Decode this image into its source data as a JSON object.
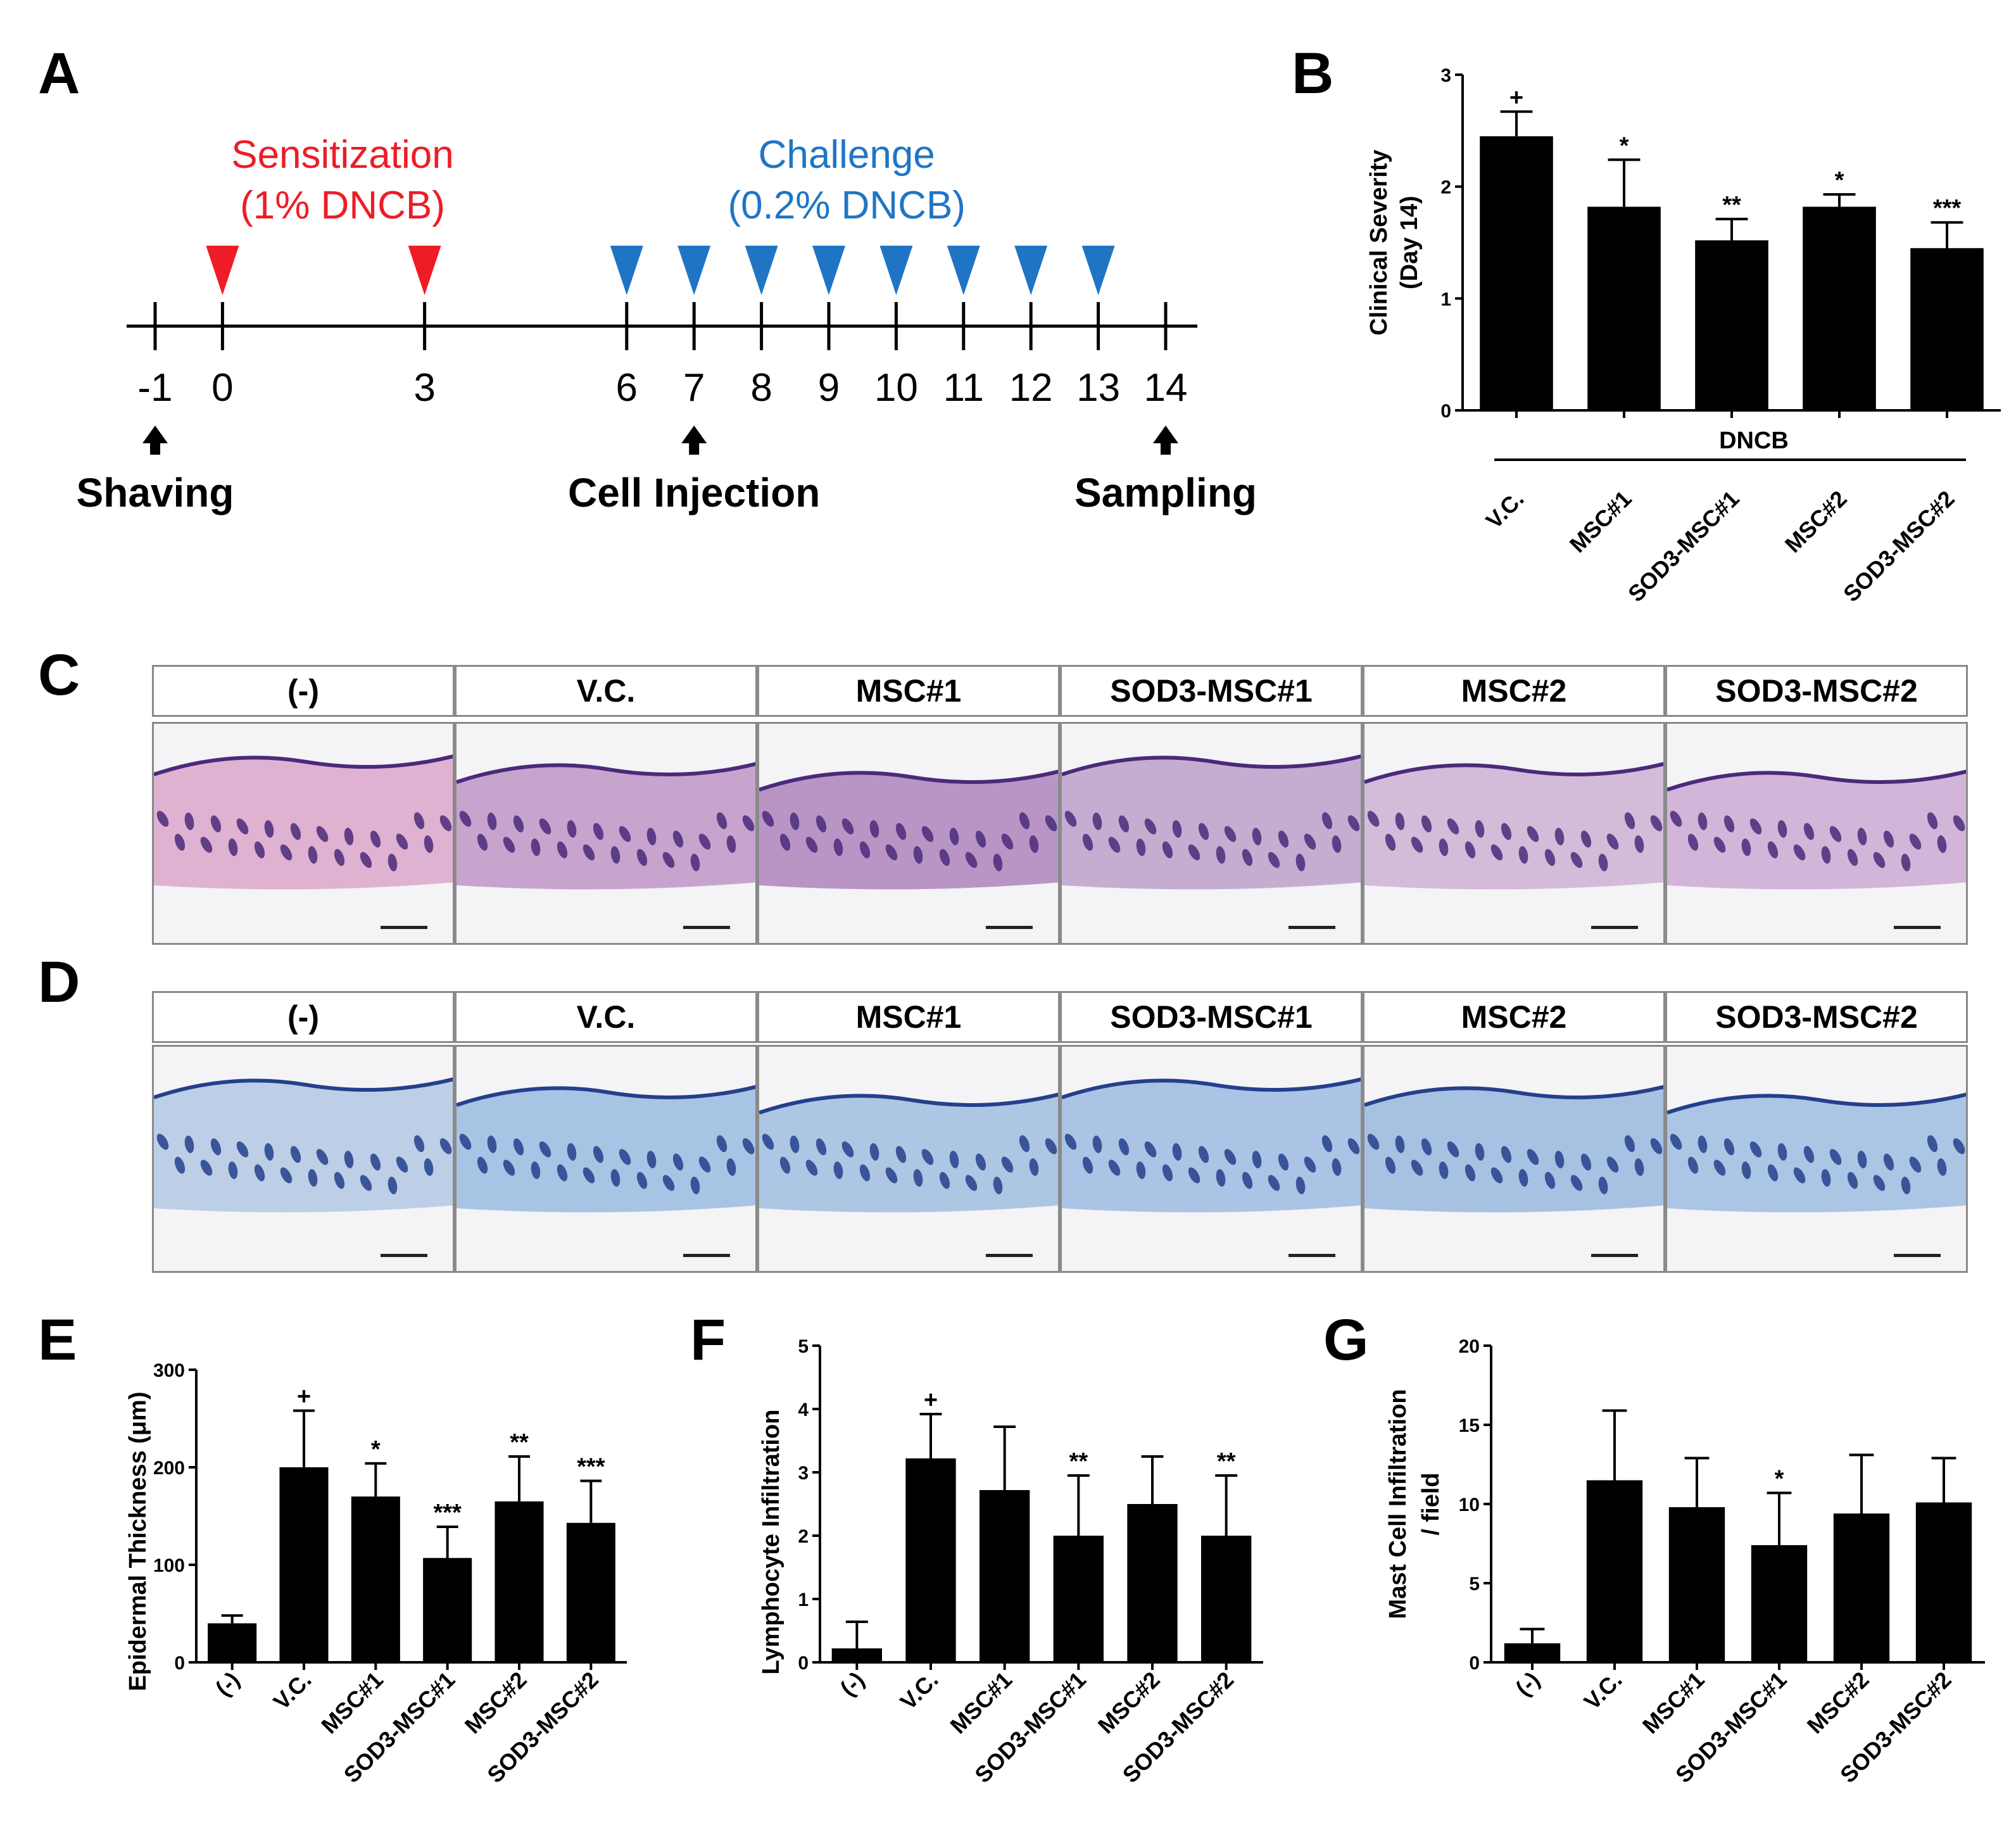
{
  "panels": {
    "A": "A",
    "B": "B",
    "C": "C",
    "D": "D",
    "E": "E",
    "F": "F",
    "G": "G"
  },
  "timeline": {
    "sensitization_title": "Sensitization",
    "sensitization_sub": "(1% DNCB)",
    "challenge_title": "Challenge",
    "challenge_sub": "(0.2% DNCB)",
    "ticks": [
      "-1",
      "0",
      "3",
      "6",
      "7",
      "8",
      "9",
      "10",
      "11",
      "12",
      "13",
      "14"
    ],
    "sensitization_days": [
      0,
      3
    ],
    "challenge_days": [
      6,
      7,
      8,
      9,
      10,
      11,
      12,
      13
    ],
    "events": [
      {
        "day": -1,
        "label": "Shaving"
      },
      {
        "day": 7,
        "label": "Cell Injection"
      },
      {
        "day": 14,
        "label": "Sampling"
      }
    ],
    "colors": {
      "sensitization": "#ee1c25",
      "challenge": "#1f75c4"
    }
  },
  "groups": [
    "(-)",
    "V.C.",
    "MSC#1",
    "SOD3-MSC#1",
    "MSC#2",
    "SOD3-MSC#2"
  ],
  "histology": {
    "he_colors": [
      "#d89cc6",
      "#b88ac0",
      "#a476b4",
      "#b696c6",
      "#c9a8cf",
      "#c7a0cd"
    ],
    "tb_colors": [
      "#a9c3e0",
      "#8fb4de",
      "#96b7dc",
      "#93b3df",
      "#8db0dc",
      "#93b5de"
    ]
  },
  "chart_data": [
    {
      "id": "B",
      "type": "bar",
      "categories": [
        "V.C.",
        "MSC#1",
        "SOD3-MSC#1",
        "MSC#2",
        "SOD3-MSC#2"
      ],
      "values": [
        2.45,
        1.82,
        1.52,
        1.82,
        1.45
      ],
      "errors": [
        0.22,
        0.42,
        0.19,
        0.11,
        0.23
      ],
      "significance": [
        "+",
        "*",
        "**",
        "*",
        "***"
      ],
      "ylabel_line1": "Clinical Severity",
      "ylabel_line2": "(Day 14)",
      "group_label": "DNCB",
      "ylim": [
        0,
        3
      ],
      "yticks": [
        "0",
        "1",
        "2",
        "3"
      ],
      "ytick_values": [
        0,
        1,
        2,
        3
      ]
    },
    {
      "id": "E",
      "type": "bar",
      "categories": [
        "(-)",
        "V.C.",
        "MSC#1",
        "SOD3-MSC#1",
        "MSC#2",
        "SOD3-MSC#2"
      ],
      "values": [
        40,
        200,
        170,
        107,
        165,
        143
      ],
      "errors": [
        8,
        58,
        34,
        32,
        46,
        43
      ],
      "significance": [
        "",
        "+",
        "*",
        "***",
        "**",
        "***"
      ],
      "ylabel": "Epidermal Thickness (μm)",
      "ylim": [
        0,
        300
      ],
      "yticks": [
        "0",
        "100",
        "200",
        "300"
      ],
      "ytick_values": [
        0,
        100,
        200,
        300
      ]
    },
    {
      "id": "F",
      "type": "bar",
      "categories": [
        "(-)",
        "V.C.",
        "MSC#1",
        "SOD3-MSC#1",
        "MSC#2",
        "SOD3-MSC#2"
      ],
      "values": [
        0.22,
        3.22,
        2.72,
        2.0,
        2.5,
        2.0
      ],
      "errors": [
        0.42,
        0.7,
        1.0,
        0.95,
        0.75,
        0.95
      ],
      "significance": [
        "",
        "+",
        "",
        "**",
        "",
        "**"
      ],
      "ylabel": "Lymphocyte Infiltration",
      "ylim": [
        0,
        5
      ],
      "yticks": [
        "0",
        "1",
        "2",
        "3",
        "4",
        "5"
      ],
      "ytick_values": [
        0,
        1,
        2,
        3,
        4,
        5
      ]
    },
    {
      "id": "G",
      "type": "bar",
      "categories": [
        "(-)",
        "V.C.",
        "MSC#1",
        "SOD3-MSC#1",
        "MSC#2",
        "SOD3-MSC#2"
      ],
      "values": [
        1.2,
        11.5,
        9.8,
        7.4,
        9.4,
        10.1
      ],
      "errors": [
        0.9,
        4.4,
        3.1,
        3.3,
        3.7,
        2.8
      ],
      "significance": [
        "",
        "",
        "",
        "*",
        "",
        ""
      ],
      "ylabel_line1": "Mast Cell Infiltration",
      "ylabel_line2": "/ field",
      "ylim": [
        0,
        20
      ],
      "yticks": [
        "0",
        "5",
        "10",
        "15",
        "20"
      ],
      "ytick_values": [
        0,
        5,
        10,
        15,
        20
      ]
    }
  ]
}
